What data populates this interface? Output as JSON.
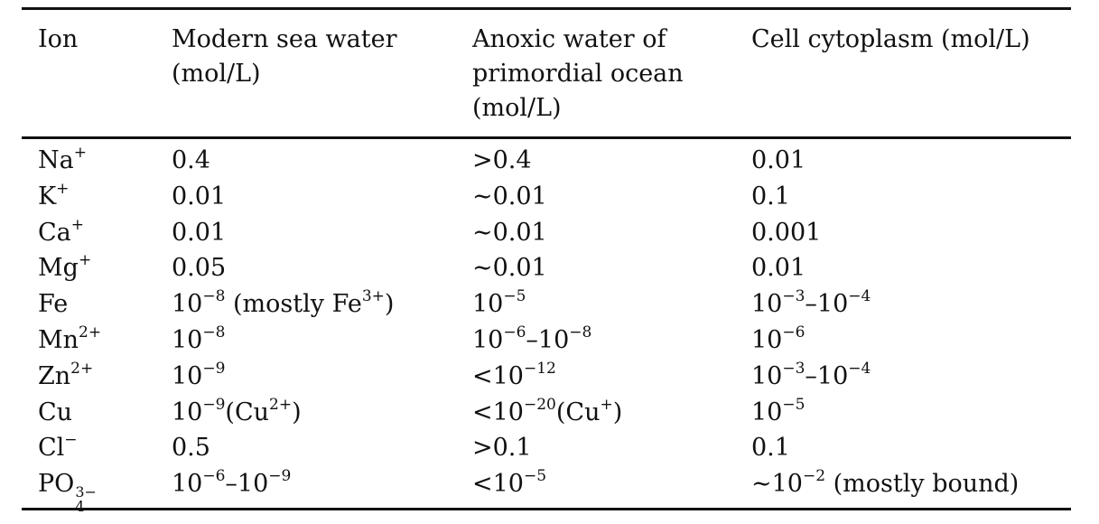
{
  "table": {
    "headers": [
      "Ion",
      "Modern sea water (mol/L)",
      "Anoxic water of primordial ocean (mol/L)",
      "Cell cytoplasm (mol/L)"
    ],
    "rows": [
      {
        "ion": {
          "base": "Na",
          "sup": "+"
        },
        "modern": [
          {
            "t": "0.4"
          }
        ],
        "anoxic": [
          {
            "t": ">0.4"
          }
        ],
        "cytoplasm": [
          {
            "t": "0.01"
          }
        ]
      },
      {
        "ion": {
          "base": "K",
          "sup": "+"
        },
        "modern": [
          {
            "t": "0.01"
          }
        ],
        "anoxic": [
          {
            "t": "∼0.01"
          }
        ],
        "cytoplasm": [
          {
            "t": "0.1"
          }
        ]
      },
      {
        "ion": {
          "base": "Ca",
          "sup": "+"
        },
        "modern": [
          {
            "t": "0.01"
          }
        ],
        "anoxic": [
          {
            "t": "∼0.01"
          }
        ],
        "cytoplasm": [
          {
            "t": "0.001"
          }
        ]
      },
      {
        "ion": {
          "base": "Mg",
          "sup": "+"
        },
        "modern": [
          {
            "t": "0.05"
          }
        ],
        "anoxic": [
          {
            "t": "∼0.01"
          }
        ],
        "cytoplasm": [
          {
            "t": "0.01"
          }
        ]
      },
      {
        "ion": {
          "base": "Fe"
        },
        "modern": [
          {
            "t": "10"
          },
          {
            "sup": "−8"
          },
          {
            "t": " (mostly Fe"
          },
          {
            "sup": "3+"
          },
          {
            "t": ")"
          }
        ],
        "anoxic": [
          {
            "t": "10"
          },
          {
            "sup": "−5"
          }
        ],
        "cytoplasm": [
          {
            "t": "10"
          },
          {
            "sup": "−3"
          },
          {
            "t": "–10"
          },
          {
            "sup": "−4"
          }
        ]
      },
      {
        "ion": {
          "base": "Mn",
          "sup": "2+"
        },
        "modern": [
          {
            "t": "10"
          },
          {
            "sup": "−8"
          }
        ],
        "anoxic": [
          {
            "t": "10"
          },
          {
            "sup": "−6"
          },
          {
            "t": "–10"
          },
          {
            "sup": "−8"
          }
        ],
        "cytoplasm": [
          {
            "t": "10"
          },
          {
            "sup": "−6"
          }
        ]
      },
      {
        "ion": {
          "base": "Zn",
          "sup": "2+"
        },
        "modern": [
          {
            "t": "10"
          },
          {
            "sup": "−9"
          }
        ],
        "anoxic": [
          {
            "t": "<10"
          },
          {
            "sup": "−12"
          }
        ],
        "cytoplasm": [
          {
            "t": "10"
          },
          {
            "sup": "−3"
          },
          {
            "t": "–10"
          },
          {
            "sup": "−4"
          }
        ]
      },
      {
        "ion": {
          "base": "Cu"
        },
        "modern": [
          {
            "t": "10"
          },
          {
            "sup": "−9"
          },
          {
            "t": "(Cu"
          },
          {
            "sup": "2+"
          },
          {
            "t": ")"
          }
        ],
        "anoxic": [
          {
            "t": "<10"
          },
          {
            "sup": "−20"
          },
          {
            "t": "(Cu"
          },
          {
            "sup": "+"
          },
          {
            "t": ")"
          }
        ],
        "cytoplasm": [
          {
            "t": "10"
          },
          {
            "sup": "−5"
          }
        ]
      },
      {
        "ion": {
          "base": "Cl",
          "sup": "−"
        },
        "modern": [
          {
            "t": "0.5"
          }
        ],
        "anoxic": [
          {
            "t": ">0.1"
          }
        ],
        "cytoplasm": [
          {
            "t": "0.1"
          }
        ]
      },
      {
        "ion": {
          "base": "PO",
          "sub": "4",
          "sup": "3−"
        },
        "modern": [
          {
            "t": "10"
          },
          {
            "sup": "−6"
          },
          {
            "t": "–10"
          },
          {
            "sup": "−9"
          }
        ],
        "anoxic": [
          {
            "t": "<10"
          },
          {
            "sup": "−5"
          }
        ],
        "cytoplasm": [
          {
            "t": "∼10"
          },
          {
            "sup": "−2"
          },
          {
            "t": " (mostly bound)"
          }
        ]
      }
    ]
  }
}
